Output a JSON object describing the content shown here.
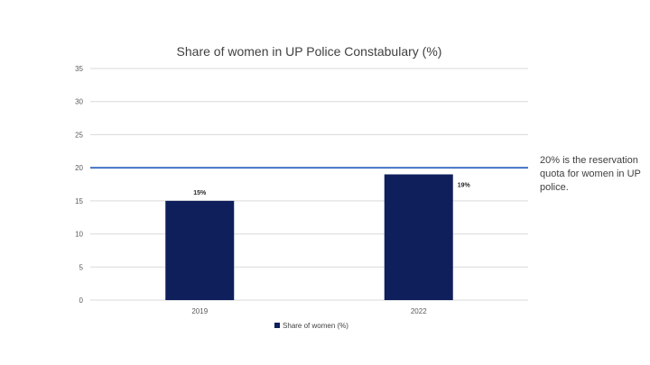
{
  "chart_data": {
    "type": "bar",
    "title": "Share of women in UP Police Constabulary (%)",
    "categories": [
      "2019",
      "2022"
    ],
    "series": [
      {
        "name": "Share of women (%)",
        "values": [
          15,
          19
        ],
        "labels": [
          "15%",
          "19%"
        ]
      }
    ],
    "ylim": [
      0,
      35
    ],
    "yticks": [
      0,
      5,
      10,
      15,
      20,
      25,
      30,
      35
    ],
    "grid": true,
    "legend_position": "bottom",
    "reference_line": {
      "value": 20,
      "color": "#4472c4"
    },
    "annotation": "20% is the reservation quota for women in UP police.",
    "bar_color": "#0e1f5c",
    "grid_color": "#d9d9d9"
  }
}
